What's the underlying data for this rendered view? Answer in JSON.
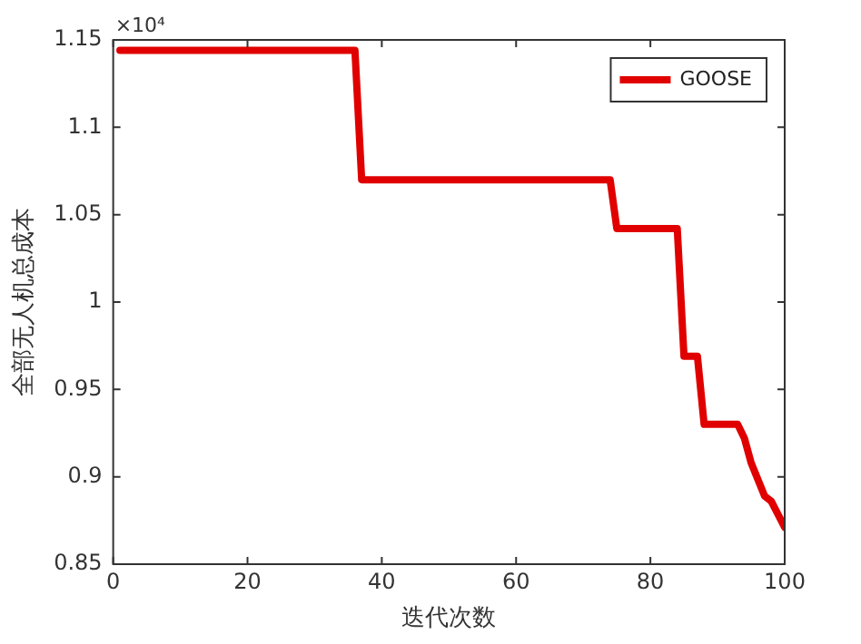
{
  "chart_data": {
    "type": "line",
    "xlabel": "迭代次数",
    "ylabel": "全部无人机总成本",
    "annotations": [
      "×10⁴"
    ],
    "x": [
      1,
      36,
      37,
      74,
      75,
      84,
      85,
      87,
      88,
      93,
      94,
      95,
      97,
      98,
      100
    ],
    "series": [
      {
        "name": "GOOSE",
        "color": "#e00000",
        "values": [
          1.144,
          1.144,
          1.07,
          1.07,
          1.042,
          1.042,
          0.969,
          0.969,
          0.93,
          0.93,
          0.922,
          0.908,
          0.889,
          0.886,
          0.871
        ]
      }
    ],
    "xlim": [
      0,
      100
    ],
    "xticks": [
      0,
      20,
      40,
      60,
      80,
      100
    ],
    "ylim": [
      0.85,
      1.15
    ],
    "yticks": [
      0.85,
      0.9,
      0.95,
      1,
      1.05,
      1.1,
      1.15
    ],
    "legend": "top right",
    "grid": false,
    "marker": "none",
    "line_style": "solid"
  }
}
